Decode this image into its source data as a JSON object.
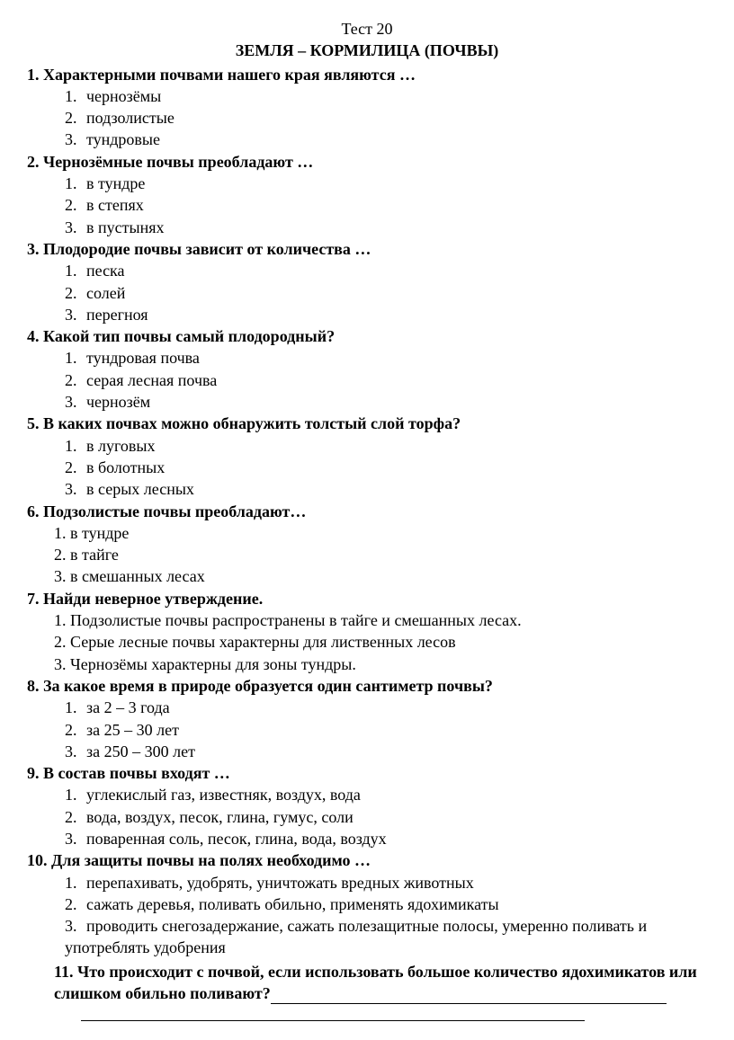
{
  "testNumber": "Тест 20",
  "testTitle": "ЗЕМЛЯ – КОРМИЛИЦА (ПОЧВЫ)",
  "questions": [
    {
      "number": "1.",
      "text": "Характерными почвами нашего края являются …",
      "options": [
        {
          "n": "1.",
          "t": "чернозёмы"
        },
        {
          "n": "2.",
          "t": "подзолистые"
        },
        {
          "n": "3.",
          "t": "тундровые"
        }
      ],
      "style": "indented"
    },
    {
      "number": "2.",
      "text": "Чернозёмные почвы преобладают …",
      "options": [
        {
          "n": "1.",
          "t": "в тундре"
        },
        {
          "n": "2.",
          "t": "в степях"
        },
        {
          "n": "3.",
          "t": "в пустынях"
        }
      ],
      "style": "indented"
    },
    {
      "number": "3.",
      "text": "Плодородие почвы зависит от количества …",
      "options": [
        {
          "n": "1.",
          "t": "песка"
        },
        {
          "n": "2.",
          "t": "солей"
        },
        {
          "n": "3.",
          "t": "перегноя"
        }
      ],
      "style": "indented"
    },
    {
      "number": "4.",
      "text": "Какой тип почвы самый плодородный?",
      "options": [
        {
          "n": "1.",
          "t": "тундровая почва"
        },
        {
          "n": "2.",
          "t": "серая лесная почва"
        },
        {
          "n": "3.",
          "t": "чернозём"
        }
      ],
      "style": "indented"
    },
    {
      "number": "5.",
      "text": "В каких почвах можно обнаружить толстый слой торфа?",
      "options": [
        {
          "n": "1.",
          "t": "в луговых"
        },
        {
          "n": "2.",
          "t": "в болотных"
        },
        {
          "n": "3.",
          "t": "в серых лесных"
        }
      ],
      "style": "indented"
    },
    {
      "number": "6.",
      "text": "Подзолистые почвы преобладают…",
      "options": [
        {
          "n": "1.",
          "t": "в тундре"
        },
        {
          "n": "2.",
          "t": "в тайге"
        },
        {
          "n": "3.",
          "t": "в смешанных лесах"
        }
      ],
      "style": "flush"
    },
    {
      "number": "7.",
      "text": "Найди неверное утверждение.",
      "options": [
        {
          "n": "1.",
          "t": "Подзолистые почвы распространены в тайге и смешанных лесах."
        },
        {
          "n": "2.",
          "t": "Серые лесные почвы характерны для лиственных лесов"
        },
        {
          "n": "3.",
          "t": "Чернозёмы характерны для зоны тундры."
        }
      ],
      "style": "flush"
    },
    {
      "number": "8.",
      "text": "За какое время в природе образуется один сантиметр почвы?",
      "options": [
        {
          "n": "1.",
          "t": "за 2 – 3 года"
        },
        {
          "n": "2.",
          "t": "за 25 – 30 лет"
        },
        {
          "n": "3.",
          "t": "за 250 – 300 лет"
        }
      ],
      "style": "indented"
    },
    {
      "number": "9.",
      "text": "В состав почвы входят …",
      "options": [
        {
          "n": "1.",
          "t": "углекислый газ, известняк, воздух, вода"
        },
        {
          "n": "2.",
          "t": "вода, воздух, песок, глина, гумус, соли"
        },
        {
          "n": "3.",
          "t": "поваренная соль, песок, глина, вода, воздух"
        }
      ],
      "style": "indented"
    },
    {
      "number": "10.",
      "text": "Для защиты почвы на полях необходимо …",
      "options": [
        {
          "n": "1.",
          "t": "перепахивать, удобрять, уничтожать вредных животных"
        },
        {
          "n": "2.",
          "t": "сажать деревья, поливать обильно, применять ядохимикаты"
        },
        {
          "n": "3.",
          "t": "проводить снегозадержание, сажать полезащитные полосы, умеренно поливать и употреблять удобрения"
        }
      ],
      "style": "indented"
    }
  ],
  "question11": {
    "number": "11.",
    "text": "Что происходит с почвой, если использовать большое количество ядохимикатов или слишком обильно поливают?"
  }
}
